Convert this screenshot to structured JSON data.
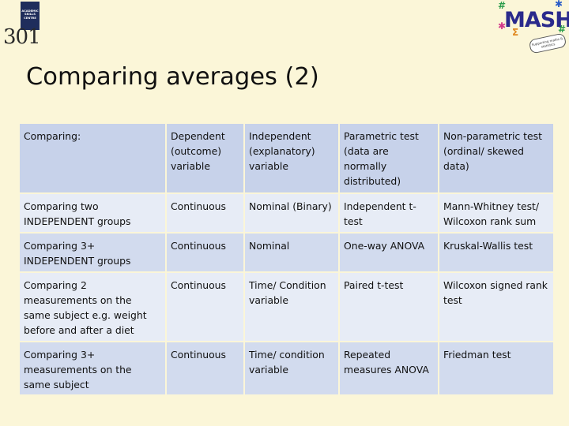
{
  "logo": {
    "badge_text": "ACADEMIC\nSKILLS\nCENTRE",
    "number": "301"
  },
  "mash_logo": {
    "word": "MASH",
    "tagline": "Supporting maths & statistics"
  },
  "title": "Comparing averages (2)",
  "table": {
    "headers": [
      "Comparing:",
      "Dependent (outcome) variable",
      "Independent (explanatory) variable",
      "Parametric test (data are normally distributed)",
      "Non-parametric test (ordinal/ skewed data)"
    ],
    "rows": [
      [
        "Comparing two INDEPENDENT groups",
        "Continuous",
        "Nominal (Binary)",
        "Independent t-test",
        "Mann-Whitney test/ Wilcoxon rank sum"
      ],
      [
        "Comparing 3+ INDEPENDENT groups",
        "Continuous",
        "Nominal",
        "One-way ANOVA",
        "Kruskal-Wallis test"
      ],
      [
        "Comparing 2 measurements on the same subject e.g. weight before and after a diet",
        "Continuous",
        "Time/ Condition variable",
        "Paired t-test",
        "Wilcoxon signed rank test"
      ],
      [
        "Comparing 3+ measurements on the same subject",
        "Continuous",
        "Time/ condition variable",
        "Repeated measures ANOVA",
        "Friedman test"
      ]
    ]
  }
}
